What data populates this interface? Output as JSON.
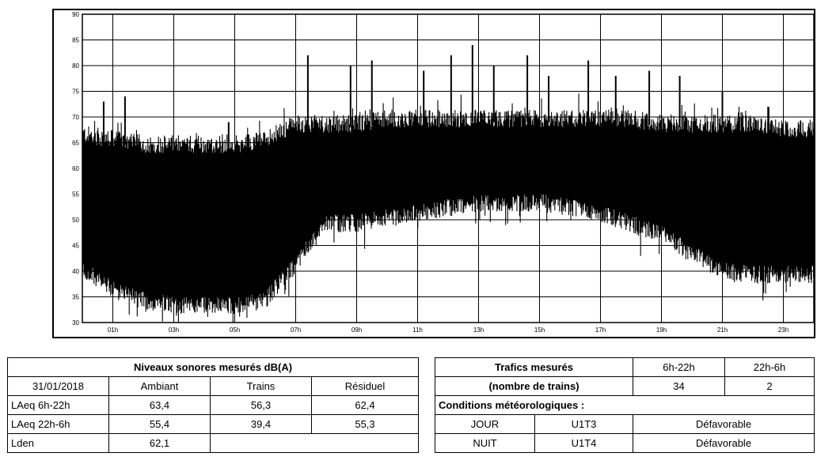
{
  "chart_data": {
    "type": "line",
    "x_ticks": [
      "01h",
      "03h",
      "05h",
      "07h",
      "09h",
      "11h",
      "13h",
      "15h",
      "17h",
      "19h",
      "21h",
      "23h"
    ],
    "y_ticks": [
      30,
      35,
      40,
      45,
      50,
      55,
      60,
      65,
      70,
      75,
      80,
      85,
      90
    ],
    "ylim": [
      30,
      90
    ],
    "xlim": [
      0,
      24
    ],
    "grid": true,
    "series": [
      {
        "color": "#000000",
        "envelope": {
          "hour": [
            0,
            1,
            2,
            3,
            4,
            5,
            6,
            7,
            8,
            9,
            10,
            11,
            12,
            13,
            14,
            15,
            16,
            17,
            18,
            19,
            20,
            21,
            22,
            23,
            24
          ],
          "upper": [
            66,
            65,
            64,
            64,
            64,
            64,
            65,
            68,
            68,
            68,
            69,
            69,
            69,
            69,
            69,
            69,
            69,
            69,
            69,
            68,
            68,
            68,
            68,
            67,
            67
          ],
          "lower": [
            41,
            37,
            35,
            34,
            34,
            34,
            35,
            42,
            50,
            50,
            51,
            52,
            53,
            54,
            54,
            54,
            53,
            52,
            50,
            48,
            44,
            41,
            40,
            40,
            40
          ]
        }
      }
    ],
    "peaks": [
      {
        "hour": 7.4,
        "value": 82
      },
      {
        "hour": 8.8,
        "value": 80
      },
      {
        "hour": 9.5,
        "value": 81
      },
      {
        "hour": 11.2,
        "value": 79
      },
      {
        "hour": 12.1,
        "value": 82
      },
      {
        "hour": 12.8,
        "value": 84
      },
      {
        "hour": 13.5,
        "value": 80
      },
      {
        "hour": 14.6,
        "value": 82
      },
      {
        "hour": 15.3,
        "value": 78
      },
      {
        "hour": 16.6,
        "value": 81
      },
      {
        "hour": 17.5,
        "value": 78
      },
      {
        "hour": 18.6,
        "value": 79
      },
      {
        "hour": 19.6,
        "value": 78
      },
      {
        "hour": 21.0,
        "value": 75
      },
      {
        "hour": 22.5,
        "value": 72
      },
      {
        "hour": 1.4,
        "value": 74
      },
      {
        "hour": 4.8,
        "value": 69
      },
      {
        "hour": 0.7,
        "value": 73
      }
    ]
  },
  "levels_table": {
    "title": "Niveaux sonores mesurés dB(A)",
    "columns": [
      "31/01/2018",
      "Ambiant",
      "Trains",
      "Résiduel"
    ],
    "rows": [
      {
        "label": "LAeq 6h-22h",
        "ambiant": "63,4",
        "trains": "56,3",
        "residuel": "62,4"
      },
      {
        "label": "LAeq 22h-6h",
        "ambiant": "55,4",
        "trains": "39,4",
        "residuel": "55,3"
      },
      {
        "label": "Lden",
        "ambiant": "62,1"
      }
    ]
  },
  "traffic_table": {
    "title_line1": "Trafics mesurés",
    "title_line2": "(nombre de trains)",
    "periods": [
      "6h-22h",
      "22h-6h"
    ],
    "counts": [
      "34",
      "2"
    ],
    "conditions_label": "Conditions météorologiques :",
    "rows": [
      {
        "period": "JOUR",
        "code": "U1T3",
        "condition": "Défavorable"
      },
      {
        "period": "NUIT",
        "code": "U1T4",
        "condition": "Défavorable"
      }
    ]
  }
}
